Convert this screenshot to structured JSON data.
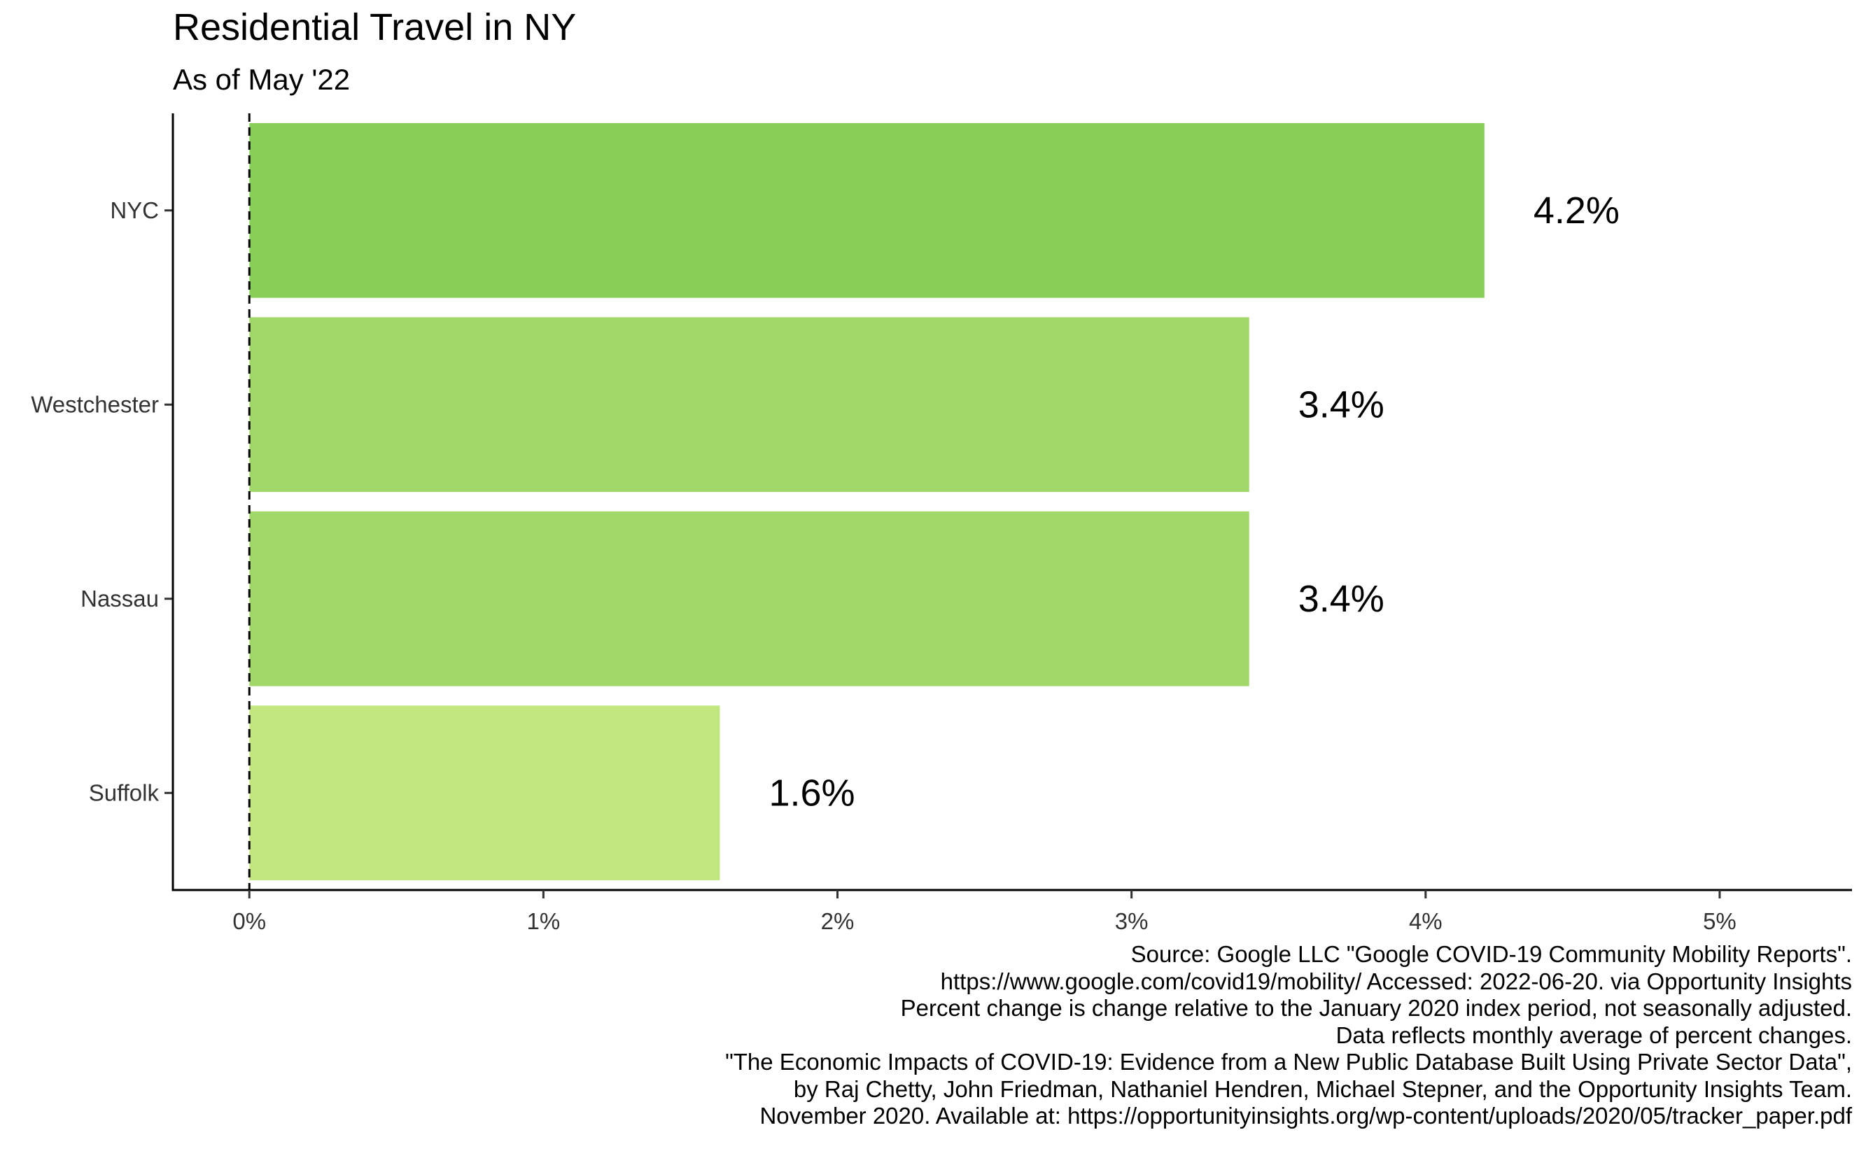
{
  "title": "Residential Travel in NY",
  "subtitle": "As of May '22",
  "chart_data": {
    "type": "bar",
    "orientation": "horizontal",
    "title": "Residential Travel in NY",
    "subtitle": "As of May '22",
    "xlabel": "",
    "ylabel": "",
    "categories": [
      "NYC",
      "Westchester",
      "Nassau",
      "Suffolk"
    ],
    "values": [
      4.2,
      3.4,
      3.4,
      1.6
    ],
    "value_labels": [
      "4.2%",
      "3.4%",
      "3.4%",
      "1.6%"
    ],
    "bar_colors": [
      "#88CF58",
      "#A2D86A",
      "#A2D86A",
      "#C2E780"
    ],
    "xlim": [
      -0.26,
      5.45
    ],
    "xticks": [
      0,
      1,
      2,
      3,
      4,
      5
    ],
    "xtick_labels": [
      "0%",
      "1%",
      "2%",
      "3%",
      "4%",
      "5%"
    ],
    "reference_line": {
      "x": 0,
      "style": "dashed"
    },
    "grid": false,
    "legend": "none"
  },
  "caption": [
    "Source: Google LLC \"Google COVID-19 Community Mobility Reports\".",
    "https://www.google.com/covid19/mobility/ Accessed: 2022-06-20. via Opportunity Insights",
    "Percent change is change relative to the January 2020 index period, not seasonally adjusted.",
    "Data reflects monthly average of percent changes.",
    "\"The Economic Impacts of COVID-19: Evidence from a New Public Database Built Using Private Sector Data\",",
    "by Raj Chetty, John Friedman, Nathaniel Hendren, Michael Stepner, and the Opportunity Insights Team.",
    "November 2020. Available at: https://opportunityinsights.org/wp-content/uploads/2020/05/tracker_paper.pdf"
  ]
}
